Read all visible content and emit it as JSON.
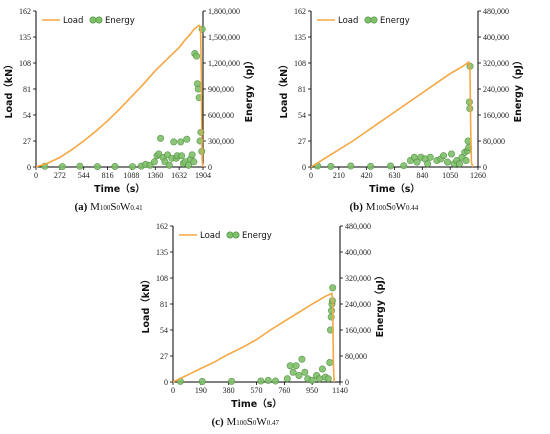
{
  "chart_data": [
    {
      "id": "a",
      "type": "line+scatter",
      "caption": {
        "label": "(a)",
        "name_parts": [
          "M",
          "100",
          "S",
          "0",
          "W",
          "0.41"
        ]
      },
      "xlabel": "Time（s）",
      "ylabel_left": "Load（kN）",
      "ylabel_right": "Energy（pJ）",
      "xlim": [
        0,
        1904
      ],
      "x_ticks": [
        "0",
        "272",
        "544",
        "816",
        "1088",
        "1360",
        "1632",
        "1904"
      ],
      "ylim_left": [
        0,
        162
      ],
      "y_ticks_left": [
        "0",
        "27",
        "54",
        "81",
        "108",
        "135",
        "162"
      ],
      "ylim_right": [
        0,
        1800000
      ],
      "y_ticks_right": [
        "0",
        "300,000",
        "600,000",
        "900,000",
        "1,200,000",
        "1,500,000",
        "1,800,000"
      ],
      "series": [
        {
          "name": "Load",
          "kind": "line",
          "color": "#f5a742",
          "points": [
            [
              0,
              0
            ],
            [
              136,
              4
            ],
            [
              272,
              10
            ],
            [
              408,
              18
            ],
            [
              544,
              27
            ],
            [
              680,
              37
            ],
            [
              816,
              48
            ],
            [
              952,
              60
            ],
            [
              1088,
              73
            ],
            [
              1224,
              86
            ],
            [
              1360,
              100
            ],
            [
              1496,
              112
            ],
            [
              1632,
              124
            ],
            [
              1700,
              132
            ],
            [
              1760,
              138
            ],
            [
              1800,
              143
            ],
            [
              1860,
              147
            ],
            [
              1875,
              145
            ],
            [
              1885,
              100
            ],
            [
              1890,
              40
            ],
            [
              1895,
              5
            ],
            [
              1904,
              0
            ]
          ]
        },
        {
          "name": "Energy",
          "kind": "scatter",
          "color": "#7fbf6a",
          "points": [
            [
              100,
              8000
            ],
            [
              300,
              5000
            ],
            [
              500,
              8000
            ],
            [
              700,
              5000
            ],
            [
              900,
              6000
            ],
            [
              1100,
              5000
            ],
            [
              1200,
              10000
            ],
            [
              1250,
              30000
            ],
            [
              1300,
              20000
            ],
            [
              1350,
              60000
            ],
            [
              1380,
              130000
            ],
            [
              1400,
              150000
            ],
            [
              1420,
              330000
            ],
            [
              1450,
              110000
            ],
            [
              1470,
              60000
            ],
            [
              1500,
              140000
            ],
            [
              1520,
              20000
            ],
            [
              1550,
              100000
            ],
            [
              1570,
              290000
            ],
            [
              1600,
              100000
            ],
            [
              1610,
              130000
            ],
            [
              1650,
              290000
            ],
            [
              1660,
              130000
            ],
            [
              1680,
              40000
            ],
            [
              1700,
              60000
            ],
            [
              1720,
              320000
            ],
            [
              1740,
              20000
            ],
            [
              1760,
              90000
            ],
            [
              1780,
              140000
            ],
            [
              1800,
              60000
            ],
            [
              1810,
              1310000
            ],
            [
              1830,
              1280000
            ],
            [
              1840,
              960000
            ],
            [
              1850,
              900000
            ],
            [
              1860,
              800000
            ],
            [
              1870,
              300000
            ],
            [
              1880,
              400000
            ],
            [
              1890,
              180000
            ],
            [
              1895,
              1590000
            ]
          ]
        }
      ]
    },
    {
      "id": "b",
      "type": "line+scatter",
      "caption": {
        "label": "(b)",
        "name_parts": [
          "M",
          "100",
          "S",
          "0",
          "W",
          "0.44"
        ]
      },
      "xlabel": "Time（s）",
      "ylabel_left": "Load（kN）",
      "ylabel_right": "Energy（pJ）",
      "xlim": [
        0,
        1260
      ],
      "x_ticks": [
        "0",
        "210",
        "420",
        "630",
        "840",
        "1050",
        "1260"
      ],
      "ylim_left": [
        0,
        162
      ],
      "y_ticks_left": [
        "0",
        "27",
        "54",
        "81",
        "108",
        "135",
        "162"
      ],
      "ylim_right": [
        0,
        480000
      ],
      "y_ticks_right": [
        "0",
        "80,000",
        "160,000",
        "240,000",
        "320,000",
        "400,000",
        "480,000"
      ],
      "series": [
        {
          "name": "Load",
          "kind": "line",
          "color": "#f5a742",
          "points": [
            [
              0,
              0
            ],
            [
              105,
              9
            ],
            [
              210,
              18
            ],
            [
              315,
              27
            ],
            [
              420,
              37
            ],
            [
              525,
              47
            ],
            [
              630,
              57
            ],
            [
              735,
              67
            ],
            [
              840,
              77
            ],
            [
              945,
              87
            ],
            [
              1050,
              97
            ],
            [
              1150,
              105
            ],
            [
              1190,
              109
            ],
            [
              1200,
              100
            ],
            [
              1205,
              40
            ],
            [
              1210,
              5
            ],
            [
              1220,
              0
            ]
          ]
        },
        {
          "name": "Energy",
          "kind": "scatter",
          "color": "#7fbf6a",
          "points": [
            [
              50,
              3000
            ],
            [
              150,
              2000
            ],
            [
              300,
              3000
            ],
            [
              450,
              2000
            ],
            [
              600,
              3000
            ],
            [
              700,
              4000
            ],
            [
              750,
              20000
            ],
            [
              780,
              30000
            ],
            [
              800,
              15000
            ],
            [
              830,
              30000
            ],
            [
              860,
              25000
            ],
            [
              880,
              10000
            ],
            [
              900,
              30000
            ],
            [
              950,
              20000
            ],
            [
              980,
              25000
            ],
            [
              1000,
              35000
            ],
            [
              1030,
              15000
            ],
            [
              1060,
              40000
            ],
            [
              1080,
              10000
            ],
            [
              1100,
              20000
            ],
            [
              1120,
              10000
            ],
            [
              1140,
              30000
            ],
            [
              1160,
              45000
            ],
            [
              1170,
              20000
            ],
            [
              1180,
              50000
            ],
            [
              1185,
              80000
            ],
            [
              1190,
              60000
            ],
            [
              1195,
              200000
            ],
            [
              1198,
              180000
            ],
            [
              1200,
              310000
            ]
          ]
        }
      ]
    },
    {
      "id": "c",
      "type": "line+scatter",
      "caption": {
        "label": "(c)",
        "name_parts": [
          "M",
          "100",
          "S",
          "0",
          "W",
          "0.47"
        ]
      },
      "xlabel": "Time（s）",
      "ylabel_left": "Load（kN）",
      "ylabel_right": "Energy（pJ）",
      "xlim": [
        0,
        1140
      ],
      "x_ticks": [
        "0",
        "190",
        "380",
        "570",
        "760",
        "950",
        "1140"
      ],
      "ylim_left": [
        0,
        162
      ],
      "y_ticks_left": [
        "0",
        "27",
        "54",
        "81",
        "108",
        "135",
        "162"
      ],
      "ylim_right": [
        0,
        480000
      ],
      "y_ticks_right": [
        "0",
        "80,000",
        "160,000",
        "240,000",
        "320,000",
        "400,000",
        "480,000"
      ],
      "series": [
        {
          "name": "Load",
          "kind": "line",
          "color": "#f5a742",
          "points": [
            [
              0,
              0
            ],
            [
              95,
              7
            ],
            [
              190,
              14
            ],
            [
              285,
              21
            ],
            [
              380,
              29
            ],
            [
              475,
              36
            ],
            [
              570,
              44
            ],
            [
              665,
              54
            ],
            [
              760,
              63
            ],
            [
              855,
              72
            ],
            [
              950,
              81
            ],
            [
              1040,
              89
            ],
            [
              1085,
              92
            ],
            [
              1090,
              80
            ],
            [
              1095,
              20
            ],
            [
              1100,
              0
            ]
          ]
        },
        {
          "name": "Energy",
          "kind": "scatter",
          "color": "#7fbf6a",
          "points": [
            [
              50,
              2000
            ],
            [
              200,
              1500
            ],
            [
              400,
              2000
            ],
            [
              600,
              3000
            ],
            [
              650,
              5000
            ],
            [
              700,
              3000
            ],
            [
              780,
              10000
            ],
            [
              800,
              50000
            ],
            [
              820,
              30000
            ],
            [
              840,
              50000
            ],
            [
              860,
              20000
            ],
            [
              880,
              70000
            ],
            [
              900,
              30000
            ],
            [
              920,
              10000
            ],
            [
              950,
              5000
            ],
            [
              980,
              20000
            ],
            [
              1000,
              10000
            ],
            [
              1020,
              40000
            ],
            [
              1040,
              15000
            ],
            [
              1060,
              10000
            ],
            [
              1070,
              60000
            ],
            [
              1075,
              160000
            ],
            [
              1080,
              200000
            ],
            [
              1082,
              220000
            ],
            [
              1085,
              240000
            ],
            [
              1088,
              250000
            ],
            [
              1090,
              290000
            ]
          ]
        }
      ]
    }
  ],
  "legend": {
    "load": "Load",
    "energy": "Energy"
  }
}
